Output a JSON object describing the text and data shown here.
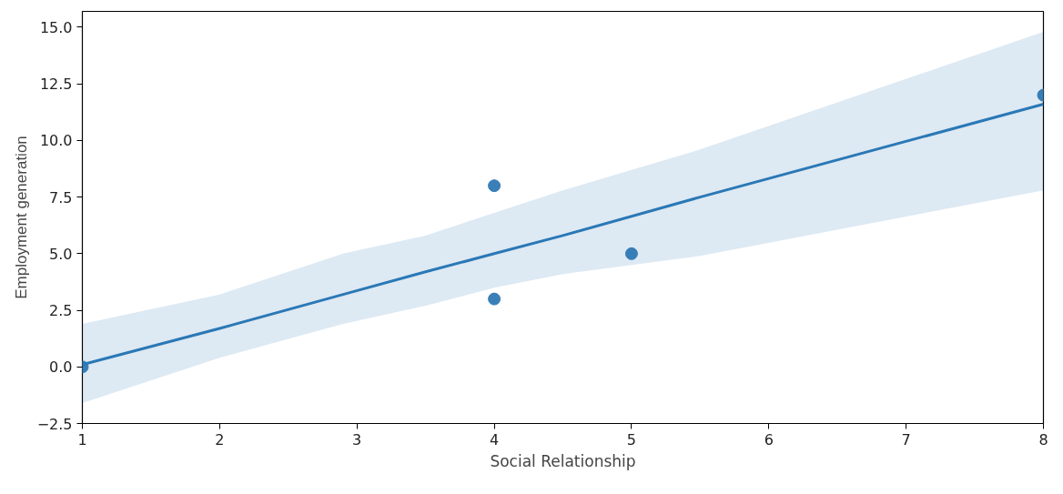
{
  "chart_data": {
    "type": "scatter",
    "xlabel": "Social Relationship",
    "ylabel": "Employment generation",
    "xlim": [
      1,
      8
    ],
    "ylim": [
      -2.5,
      15.7
    ],
    "xticks": [
      1,
      2,
      3,
      4,
      5,
      6,
      7,
      8
    ],
    "yticks": [
      -2.5,
      {
        "value": 0,
        "label": "0.0"
      },
      2.5,
      {
        "value": 5,
        "label": "5.0"
      },
      7.5,
      {
        "value": 10,
        "label": "10.0"
      },
      12.5,
      {
        "value": 15,
        "label": "15.0"
      }
    ],
    "grid": false,
    "series": [
      {
        "marker": "circle",
        "color": "#3a7fb8",
        "x": [
          1,
          4,
          4,
          5,
          8
        ],
        "values": [
          0,
          8,
          3,
          5,
          12
        ]
      },
      {
        "type": "line",
        "color": "#2a78b6",
        "x": [
          1,
          2,
          2.9,
          3.5,
          4,
          4.5,
          5.5,
          8
        ],
        "values": [
          0.1,
          1.7,
          3.2,
          4.2,
          5.0,
          5.8,
          7.5,
          11.6
        ],
        "lower": [
          -1.6,
          0.4,
          1.9,
          2.7,
          3.5,
          4.1,
          4.9,
          7.8
        ],
        "upper": [
          1.9,
          3.2,
          5.0,
          5.8,
          6.8,
          7.8,
          9.6,
          14.8
        ]
      }
    ]
  }
}
